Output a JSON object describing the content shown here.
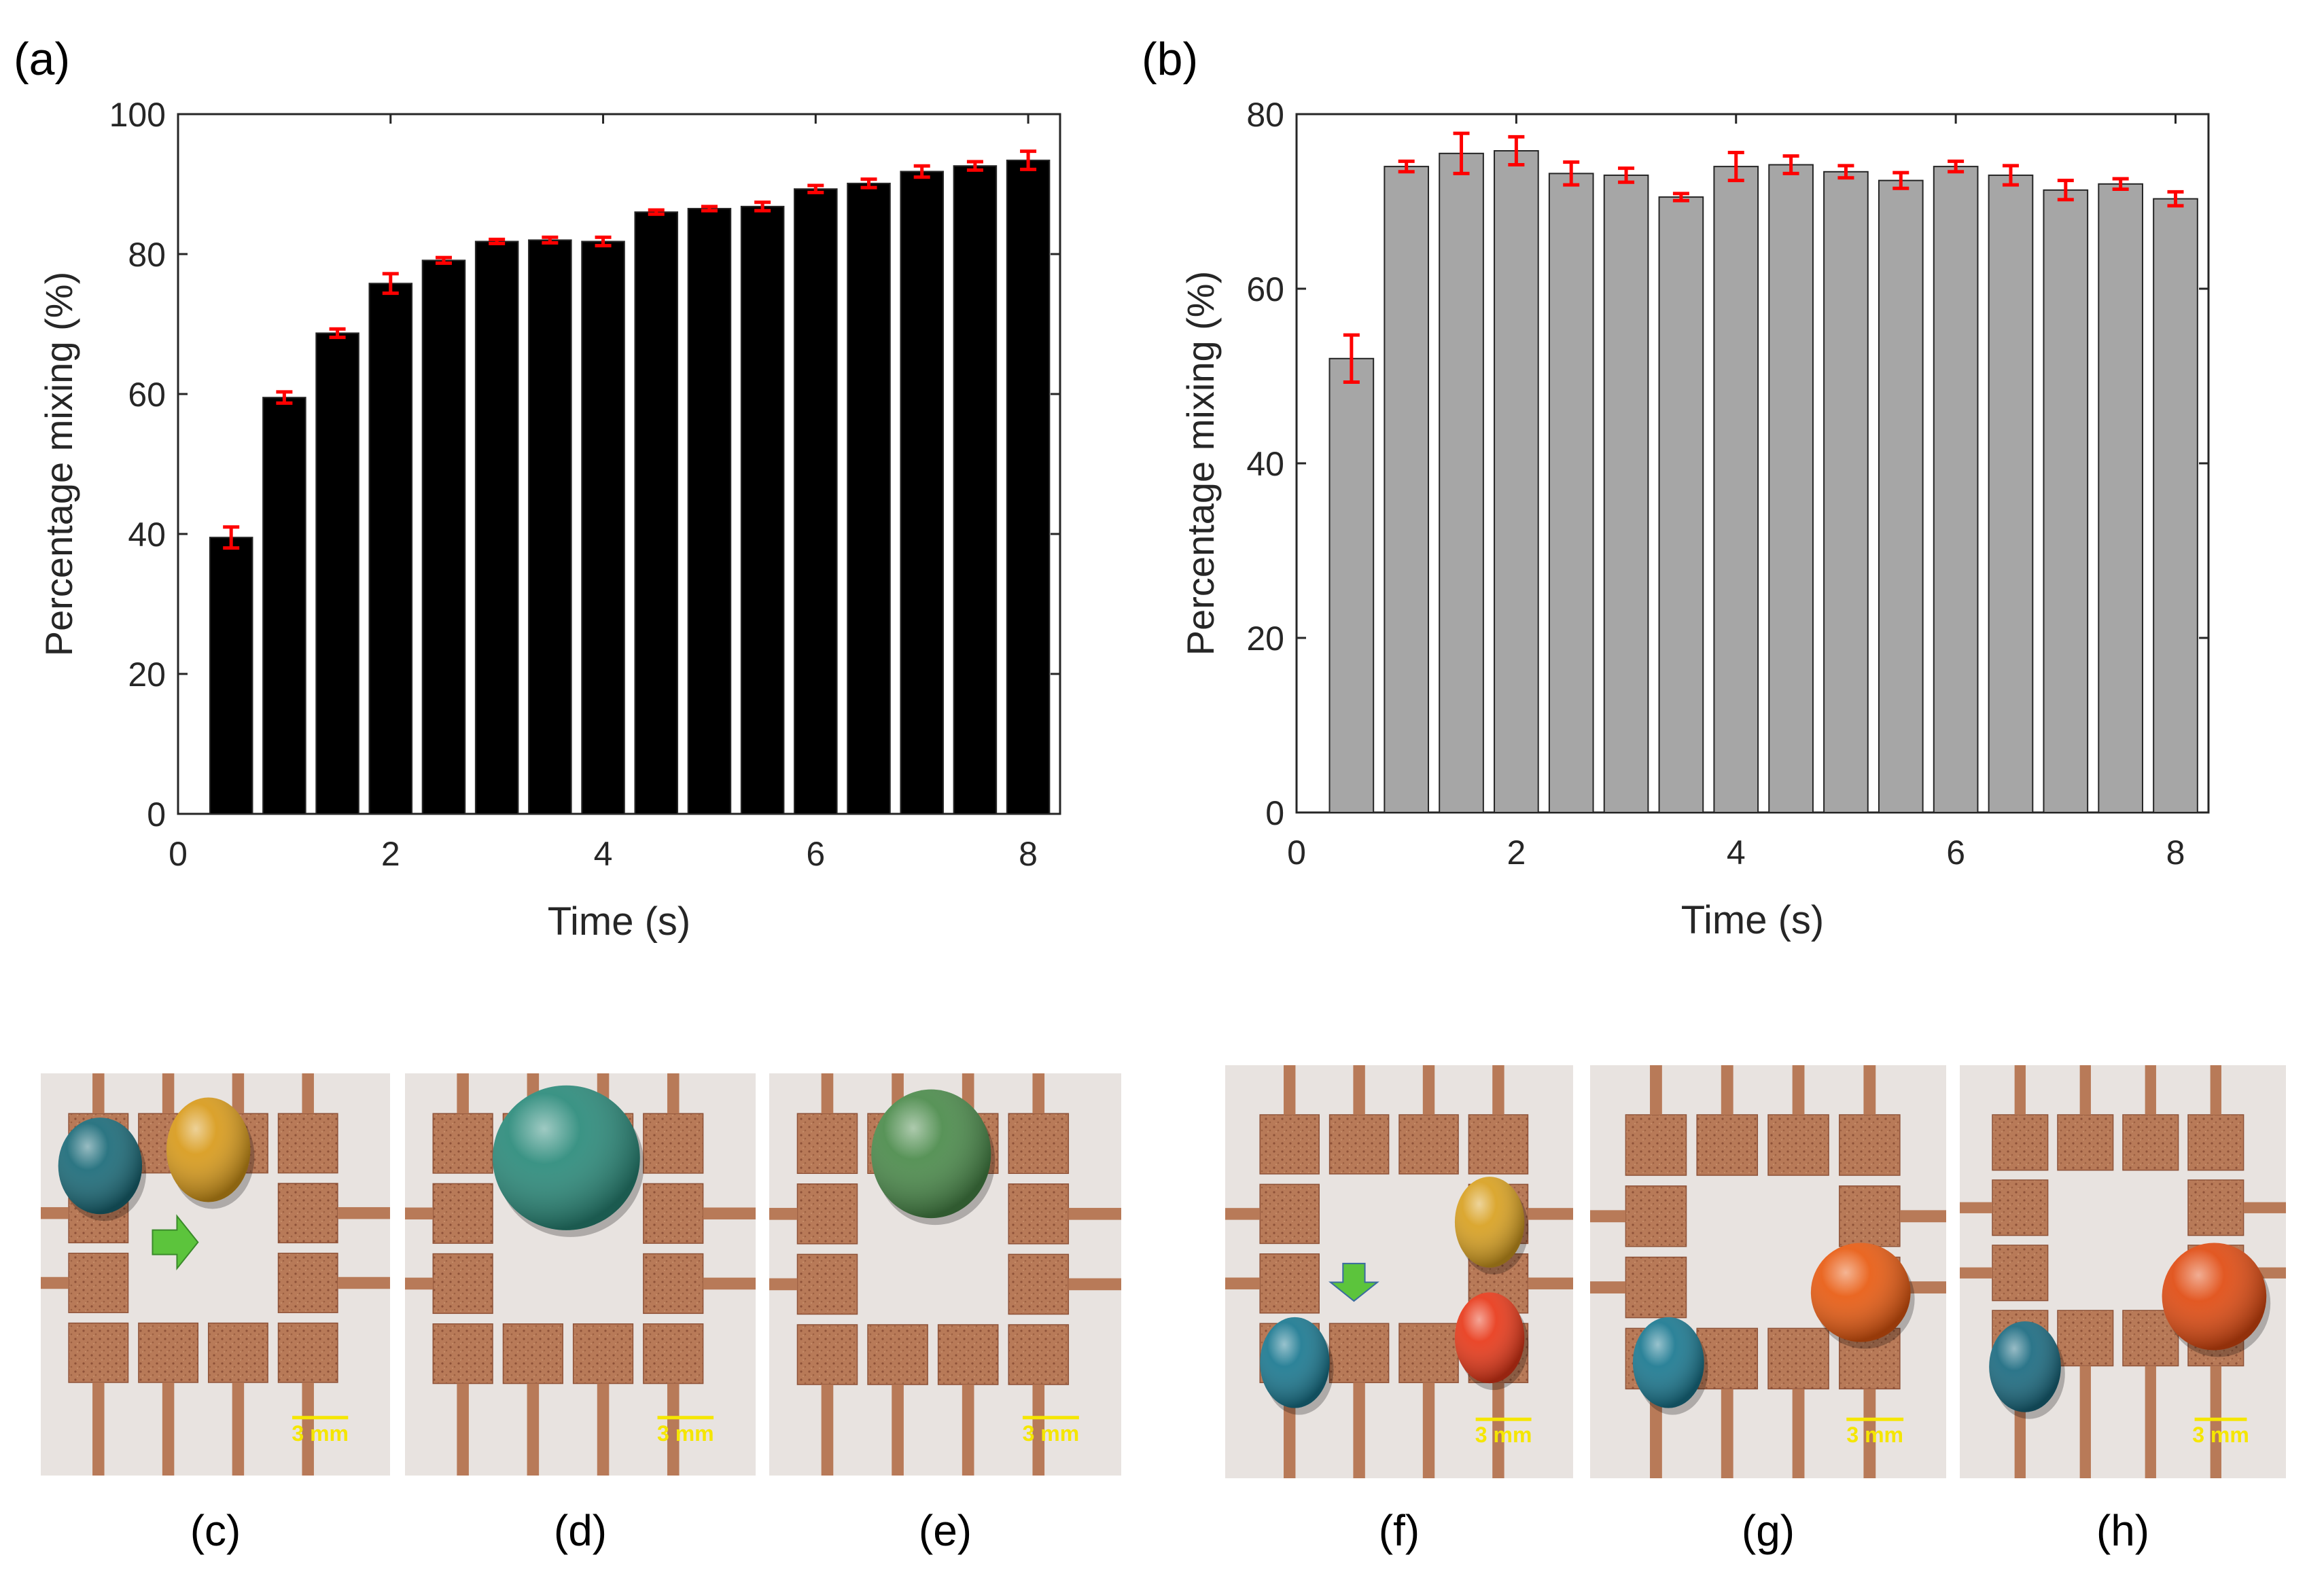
{
  "chart_data": [
    {
      "panel_label": "(a)",
      "type": "bar",
      "bar_color": "#000000",
      "error_color": "#ff0000",
      "x": [
        0.5,
        1,
        1.5,
        2,
        2.5,
        3,
        3.5,
        4,
        4.5,
        5,
        5.5,
        6,
        6.5,
        7,
        7.5,
        8
      ],
      "values": [
        39.5,
        59.5,
        68.7,
        75.8,
        79.1,
        81.8,
        82.0,
        81.8,
        86.0,
        86.5,
        86.8,
        89.3,
        90.1,
        91.8,
        92.6,
        93.4
      ],
      "errors": [
        1.5,
        0.8,
        0.6,
        1.4,
        0.4,
        0.3,
        0.4,
        0.6,
        0.3,
        0.3,
        0.6,
        0.5,
        0.6,
        0.8,
        0.6,
        1.3
      ],
      "xlabel": "Time (s)",
      "ylabel": "Percentage mixing (%)",
      "xlim": [
        0,
        8.3
      ],
      "ylim": [
        0,
        100
      ],
      "xticks": [
        0,
        2,
        4,
        6,
        8
      ],
      "yticks": [
        0,
        20,
        40,
        60,
        80,
        100
      ],
      "grid": false
    },
    {
      "panel_label": "(b)",
      "type": "bar",
      "bar_color": "#a6a6a6",
      "error_color": "#ff0000",
      "x": [
        0.5,
        1,
        1.5,
        2,
        2.5,
        3,
        3.5,
        4,
        4.5,
        5,
        5.5,
        6,
        6.5,
        7,
        7.5,
        8
      ],
      "values": [
        52.0,
        74.0,
        75.5,
        75.8,
        73.2,
        73.0,
        70.5,
        74.0,
        74.2,
        73.4,
        72.4,
        74.0,
        73.0,
        71.3,
        72.0,
        70.3
      ],
      "errors": [
        2.7,
        0.6,
        2.3,
        1.6,
        1.3,
        0.8,
        0.4,
        1.6,
        1.0,
        0.7,
        0.9,
        0.6,
        1.1,
        1.1,
        0.6,
        0.8
      ],
      "xlabel": "Time (s)",
      "ylabel": "Percentage mixing (%)",
      "xlim": [
        0,
        8.3
      ],
      "ylim": [
        0,
        80
      ],
      "xticks": [
        0,
        2,
        4,
        6,
        8
      ],
      "yticks": [
        0,
        20,
        40,
        60,
        80
      ],
      "grid": false
    }
  ],
  "photos": [
    {
      "label": "(c)",
      "scale_bar": "3 mm",
      "droplets": [
        {
          "color": "#1a6a78"
        },
        {
          "color": "#d89a1a"
        }
      ],
      "arrow": "right"
    },
    {
      "label": "(d)",
      "scale_bar": "3 mm",
      "droplets": [
        {
          "color": "#2a8a7a"
        }
      ],
      "arrow": ""
    },
    {
      "label": "(e)",
      "scale_bar": "3 mm",
      "droplets": [
        {
          "color": "#4a8a4a"
        }
      ],
      "arrow": ""
    },
    {
      "label": "(f)",
      "scale_bar": "3 mm",
      "droplets": [
        {
          "color": "#d8a020"
        },
        {
          "color": "#e83818"
        },
        {
          "color": "#1a7890"
        }
      ],
      "arrow": "down"
    },
    {
      "label": "(g)",
      "scale_bar": "3 mm",
      "droplets": [
        {
          "color": "#e85a10"
        },
        {
          "color": "#1a7890"
        }
      ],
      "arrow": ""
    },
    {
      "label": "(h)",
      "scale_bar": "3 mm",
      "droplets": [
        {
          "color": "#e04a10"
        },
        {
          "color": "#1a6a80"
        }
      ],
      "arrow": ""
    }
  ],
  "colors": {
    "electrode": "#b87a58",
    "electrode_dark": "#8e5238",
    "substrate": "#e8e3e0",
    "scale_bar": "#f5e600",
    "arrow": "#5cc43c"
  }
}
